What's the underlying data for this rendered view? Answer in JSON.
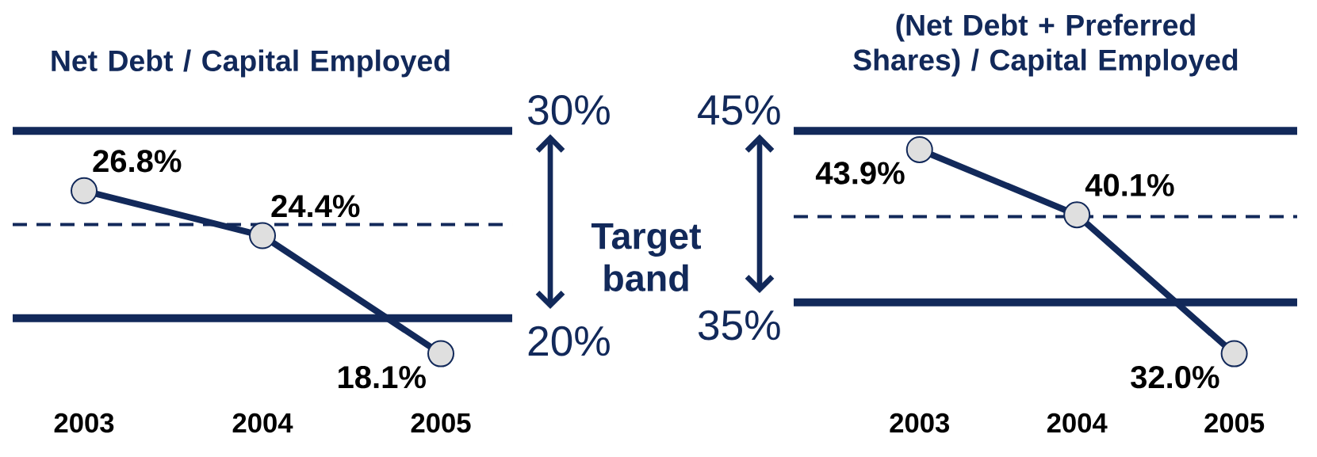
{
  "chart_data": [
    {
      "type": "line",
      "title": "Net Debt / Capital Employed",
      "categories": [
        "2003",
        "2004",
        "2005"
      ],
      "series": [
        {
          "color": "#12295a",
          "values": [
            26.8,
            24.4,
            18.1
          ],
          "value_labels": [
            "26.8%",
            "24.4%",
            "18.1%"
          ]
        }
      ],
      "tick_labels": "x",
      "marker": "circle",
      "ref_lines": [
        {
          "axis": "y",
          "value": 30,
          "label": "30%",
          "color": "#12295a"
        },
        {
          "axis": "y",
          "value": 20,
          "label": "20%",
          "color": "#12295a"
        },
        {
          "axis": "y",
          "value": 25,
          "line_style": "dashed",
          "color": "#12295a"
        }
      ],
      "annotations": [
        "Target band"
      ]
    },
    {
      "type": "line",
      "title": "(Net Debt + Preferred Shares) / Capital Employed",
      "categories": [
        "2003",
        "2004",
        "2005"
      ],
      "series": [
        {
          "color": "#12295a",
          "values": [
            43.9,
            40.1,
            32.0
          ],
          "value_labels": [
            "43.9%",
            "40.1%",
            "32.0%"
          ]
        }
      ],
      "tick_labels": "x",
      "marker": "circle",
      "ref_lines": [
        {
          "axis": "y",
          "value": 45,
          "label": "45%",
          "color": "#12295a"
        },
        {
          "axis": "y",
          "value": 35,
          "label": "35%",
          "color": "#12295a"
        },
        {
          "axis": "y",
          "value": 40,
          "line_style": "dashed",
          "color": "#12295a"
        }
      ]
    }
  ]
}
